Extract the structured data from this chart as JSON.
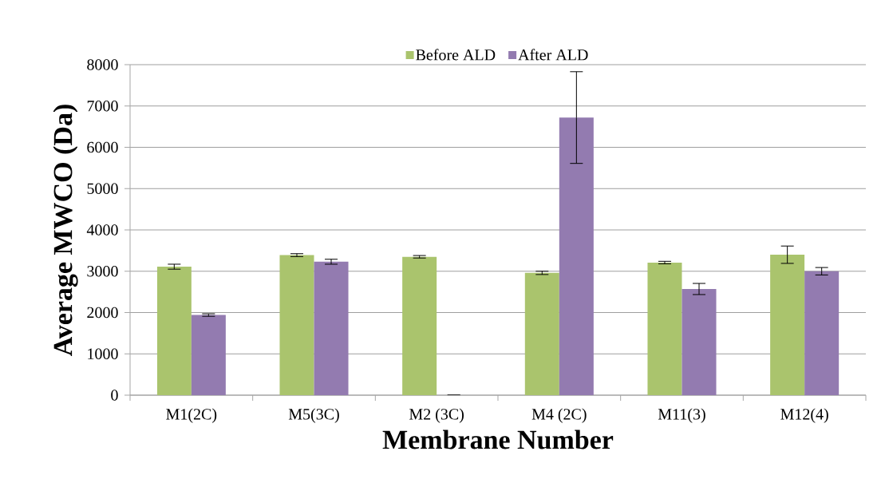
{
  "chart_data": {
    "type": "bar",
    "xlabel": "Membrane Number",
    "ylabel": "Average MWCO (Da)",
    "categories": [
      "M1(2C)",
      "M5(3C)",
      "M2 (3C)",
      "M4 (2C)",
      "M11(3)",
      "M12(4)"
    ],
    "series": [
      {
        "name": "Before ALD",
        "color": "#aac46d",
        "values": [
          3110,
          3390,
          3350,
          2960,
          3210,
          3400
        ],
        "errors": [
          60,
          35,
          30,
          40,
          30,
          210
        ]
      },
      {
        "name": "After ALD",
        "color": "#937bb0",
        "values": [
          1940,
          3230,
          0,
          6720,
          2570,
          3000
        ],
        "errors": [
          30,
          60,
          null,
          1110,
          135,
          90
        ]
      }
    ],
    "ylim": [
      0,
      8000
    ],
    "yticks": [
      0,
      1000,
      2000,
      3000,
      4000,
      5000,
      6000,
      7000,
      8000
    ],
    "grid": "y",
    "legend": "top"
  }
}
